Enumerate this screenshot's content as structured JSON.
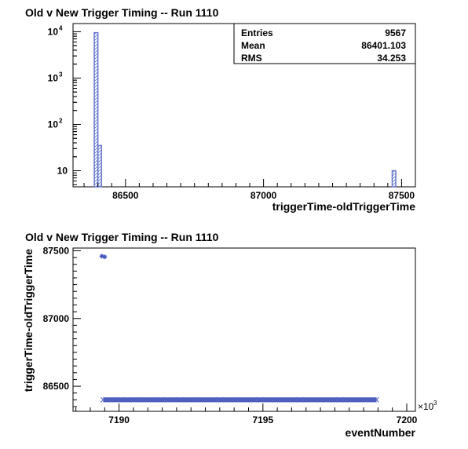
{
  "colors": {
    "fill": "#6677cc",
    "hatch": "#6677cc",
    "axis": "#000000",
    "background": "#ffffff"
  },
  "chart_data": [
    {
      "type": "bar",
      "title": "Old v New Trigger Timing -- Run 1110",
      "xlabel": "triggerTime-oldTriggerTime",
      "ylabel": "",
      "log_y": true,
      "xlim": [
        86310,
        87550
      ],
      "ylim": [
        4.5,
        15000
      ],
      "x_ticks": [
        86500,
        87000,
        87500
      ],
      "x_tick_labels": [
        "86500",
        "87000",
        "87500"
      ],
      "y_ticks": [
        {
          "value": 10,
          "base": "10",
          "exp": ""
        },
        {
          "value": 100,
          "base": "10",
          "exp": "2"
        },
        {
          "value": 1000,
          "base": "10",
          "exp": "3"
        },
        {
          "value": 10000,
          "base": "10",
          "exp": "4"
        }
      ],
      "bins": [
        {
          "x0": 86387,
          "x1": 86400,
          "count": 9520
        },
        {
          "x0": 86400,
          "x1": 86413,
          "count": 35
        },
        {
          "x0": 87466,
          "x1": 87479,
          "count": 10
        }
      ],
      "stats": {
        "rows": [
          {
            "label": "Entries",
            "value": "9567"
          },
          {
            "label": "Mean",
            "value": "86401.103"
          },
          {
            "label": "RMS",
            "value": "34.253"
          }
        ]
      }
    },
    {
      "type": "scatter",
      "title": "Old v New Trigger Timing -- Run 1110",
      "xlabel": "eventNumber",
      "ylabel": "triggerTime-oldTriggerTime",
      "xlim": [
        7188.4,
        7200.3
      ],
      "ylim": [
        86315,
        87520
      ],
      "x_ticks": [
        7190,
        7195,
        7200
      ],
      "x_tick_labels": [
        "7190",
        "7195",
        "7200"
      ],
      "y_ticks": [
        86500,
        87000,
        87500
      ],
      "y_tick_labels": [
        "86500",
        "87000",
        "87500"
      ],
      "x_multiplier": {
        "base": "×10",
        "exp": "3"
      },
      "band": {
        "x_start": 7189.45,
        "x_end": 7198.95,
        "y": 86400
      },
      "outliers": [
        {
          "x": 7189.4,
          "y": 87460
        },
        {
          "x": 7189.5,
          "y": 87455
        }
      ]
    }
  ]
}
